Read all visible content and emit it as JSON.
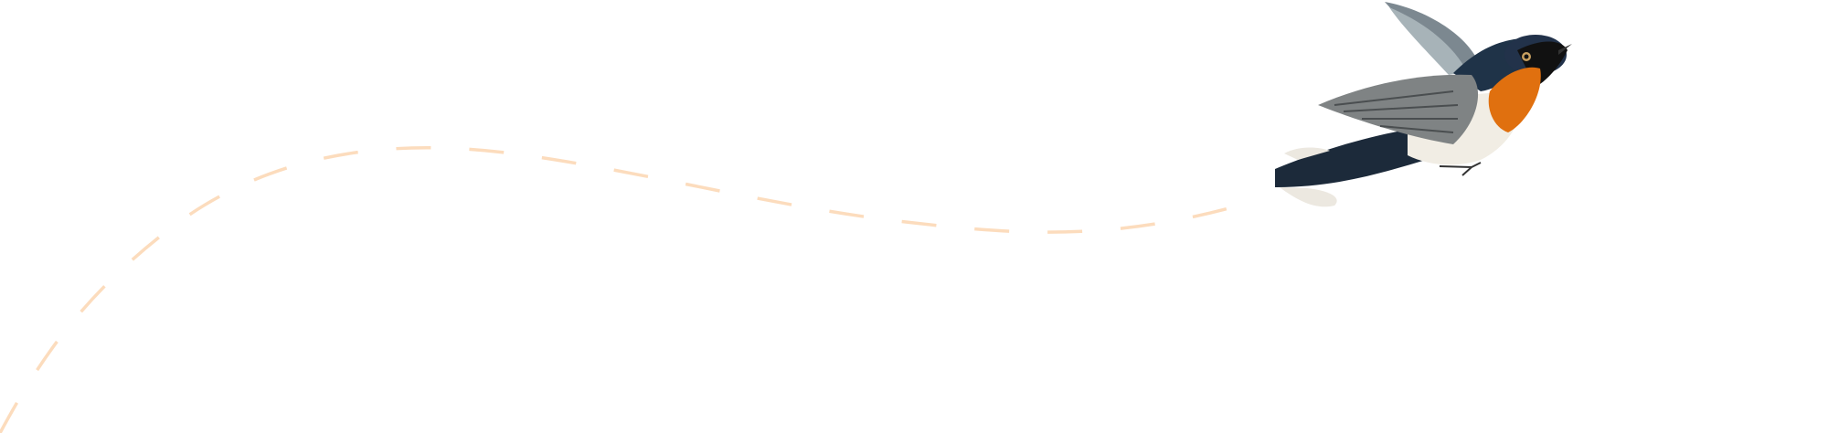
{
  "background_color": "#ffffff",
  "flight_path": {
    "style": "dashed",
    "color": "#fcdcbd"
  },
  "illustration": {
    "subject": "bird-illustration",
    "colors": {
      "throat": "#e0700f",
      "back": "#1f3348",
      "wing": "#8a8e8e",
      "belly": "#f1ede4"
    }
  }
}
